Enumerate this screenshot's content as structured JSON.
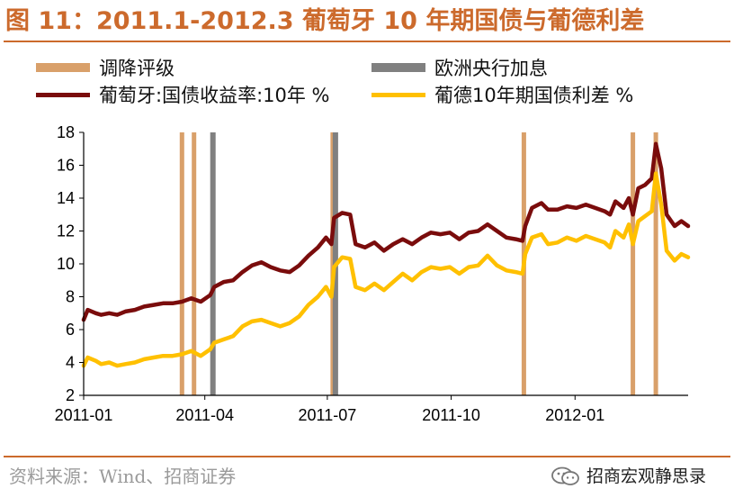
{
  "header": {
    "title": "图 11：2011.1-2012.3 葡萄牙 10 年期国债与葡德利差"
  },
  "legend": {
    "items": [
      {
        "label": "调降评级",
        "kind": "bar",
        "color": "#d9a06a"
      },
      {
        "label": "欧洲央行加息",
        "kind": "bar",
        "color": "#808080"
      },
      {
        "label": "葡萄牙:国债收益率:10年 %",
        "kind": "line",
        "color": "#7a0c0c"
      },
      {
        "label": "葡德10年期国债利差 %",
        "kind": "line",
        "color": "#ffc000"
      }
    ]
  },
  "footer": {
    "source": "资料来源：Wind、招商证券",
    "brand": "招商宏观静思录"
  },
  "chart_data": {
    "type": "line",
    "title": "图 11：2011.1-2012.3 葡萄牙 10 年期国债与葡德利差",
    "xlabel": "",
    "ylabel": "",
    "x_range": [
      "2011-01-01",
      "2012-03-25"
    ],
    "ylim": [
      2,
      18
    ],
    "y_ticks": [
      2,
      4,
      6,
      8,
      10,
      12,
      14,
      16,
      18
    ],
    "x_ticks": [
      {
        "date": "2011-01-01",
        "label": "2011-01"
      },
      {
        "date": "2011-04-01",
        "label": "2011-04"
      },
      {
        "date": "2011-07-01",
        "label": "2011-07"
      },
      {
        "date": "2011-10-01",
        "label": "2011-10"
      },
      {
        "date": "2012-01-01",
        "label": "2012-01"
      }
    ],
    "grid": false,
    "legend_position": "top",
    "events": [
      {
        "series": "调降评级",
        "dates": [
          "2011-03-15",
          "2011-03-24",
          "2011-07-05",
          "2011-11-24",
          "2012-02-13",
          "2012-03-01"
        ]
      },
      {
        "series": "欧洲央行加息",
        "dates": [
          "2011-04-07",
          "2011-07-07"
        ]
      }
    ],
    "series": [
      {
        "name": "葡萄牙:国债收益率:10年 %",
        "color": "#7a0c0c",
        "points": [
          [
            "2011-01-01",
            6.6
          ],
          [
            "2011-01-04",
            7.2
          ],
          [
            "2011-01-10",
            7.0
          ],
          [
            "2011-01-14",
            6.9
          ],
          [
            "2011-01-20",
            7.0
          ],
          [
            "2011-01-26",
            6.9
          ],
          [
            "2011-02-01",
            7.1
          ],
          [
            "2011-02-08",
            7.2
          ],
          [
            "2011-02-15",
            7.4
          ],
          [
            "2011-02-22",
            7.5
          ],
          [
            "2011-03-01",
            7.6
          ],
          [
            "2011-03-08",
            7.6
          ],
          [
            "2011-03-15",
            7.7
          ],
          [
            "2011-03-22",
            7.9
          ],
          [
            "2011-03-29",
            7.7
          ],
          [
            "2011-04-05",
            8.1
          ],
          [
            "2011-04-08",
            8.6
          ],
          [
            "2011-04-15",
            8.9
          ],
          [
            "2011-04-22",
            9.0
          ],
          [
            "2011-04-29",
            9.5
          ],
          [
            "2011-05-06",
            9.9
          ],
          [
            "2011-05-13",
            10.1
          ],
          [
            "2011-05-20",
            9.8
          ],
          [
            "2011-05-27",
            9.6
          ],
          [
            "2011-06-03",
            9.5
          ],
          [
            "2011-06-10",
            9.9
          ],
          [
            "2011-06-17",
            10.5
          ],
          [
            "2011-06-24",
            11.0
          ],
          [
            "2011-06-30",
            11.6
          ],
          [
            "2011-07-04",
            11.2
          ],
          [
            "2011-07-06",
            12.8
          ],
          [
            "2011-07-12",
            13.1
          ],
          [
            "2011-07-18",
            13.0
          ],
          [
            "2011-07-22",
            11.2
          ],
          [
            "2011-07-29",
            11.0
          ],
          [
            "2011-08-05",
            11.3
          ],
          [
            "2011-08-12",
            10.8
          ],
          [
            "2011-08-19",
            11.2
          ],
          [
            "2011-08-26",
            11.5
          ],
          [
            "2011-09-02",
            11.2
          ],
          [
            "2011-09-09",
            11.6
          ],
          [
            "2011-09-16",
            11.9
          ],
          [
            "2011-09-23",
            11.8
          ],
          [
            "2011-09-30",
            11.9
          ],
          [
            "2011-10-07",
            11.5
          ],
          [
            "2011-10-14",
            11.9
          ],
          [
            "2011-10-21",
            12.0
          ],
          [
            "2011-10-28",
            12.4
          ],
          [
            "2011-11-04",
            12.0
          ],
          [
            "2011-11-11",
            11.6
          ],
          [
            "2011-11-18",
            11.5
          ],
          [
            "2011-11-23",
            11.4
          ],
          [
            "2011-11-25",
            12.3
          ],
          [
            "2011-11-30",
            13.4
          ],
          [
            "2011-12-07",
            13.7
          ],
          [
            "2011-12-12",
            13.3
          ],
          [
            "2011-12-19",
            13.3
          ],
          [
            "2011-12-26",
            13.5
          ],
          [
            "2012-01-02",
            13.4
          ],
          [
            "2012-01-09",
            13.6
          ],
          [
            "2012-01-16",
            13.4
          ],
          [
            "2012-01-23",
            13.2
          ],
          [
            "2012-01-27",
            13.0
          ],
          [
            "2012-01-31",
            13.8
          ],
          [
            "2012-02-06",
            13.4
          ],
          [
            "2012-02-10",
            14.0
          ],
          [
            "2012-02-13",
            13.0
          ],
          [
            "2012-02-17",
            14.6
          ],
          [
            "2012-02-22",
            14.8
          ],
          [
            "2012-02-27",
            15.2
          ],
          [
            "2012-03-01",
            17.3
          ],
          [
            "2012-03-05",
            15.8
          ],
          [
            "2012-03-09",
            13.0
          ],
          [
            "2012-03-15",
            12.3
          ],
          [
            "2012-03-20",
            12.6
          ],
          [
            "2012-03-25",
            12.3
          ]
        ]
      },
      {
        "name": "葡德10年期国债利差 %",
        "color": "#ffc000",
        "points": [
          [
            "2011-01-01",
            3.8
          ],
          [
            "2011-01-04",
            4.3
          ],
          [
            "2011-01-10",
            4.1
          ],
          [
            "2011-01-14",
            3.9
          ],
          [
            "2011-01-20",
            4.0
          ],
          [
            "2011-01-26",
            3.8
          ],
          [
            "2011-02-01",
            3.9
          ],
          [
            "2011-02-08",
            4.0
          ],
          [
            "2011-02-15",
            4.2
          ],
          [
            "2011-02-22",
            4.3
          ],
          [
            "2011-03-01",
            4.4
          ],
          [
            "2011-03-08",
            4.4
          ],
          [
            "2011-03-15",
            4.5
          ],
          [
            "2011-03-22",
            4.7
          ],
          [
            "2011-03-29",
            4.4
          ],
          [
            "2011-04-05",
            4.8
          ],
          [
            "2011-04-08",
            5.2
          ],
          [
            "2011-04-15",
            5.4
          ],
          [
            "2011-04-22",
            5.6
          ],
          [
            "2011-04-29",
            6.2
          ],
          [
            "2011-05-06",
            6.5
          ],
          [
            "2011-05-13",
            6.6
          ],
          [
            "2011-05-20",
            6.4
          ],
          [
            "2011-05-27",
            6.2
          ],
          [
            "2011-06-03",
            6.4
          ],
          [
            "2011-06-10",
            6.8
          ],
          [
            "2011-06-17",
            7.5
          ],
          [
            "2011-06-24",
            8.0
          ],
          [
            "2011-06-30",
            8.6
          ],
          [
            "2011-07-04",
            8.0
          ],
          [
            "2011-07-06",
            9.8
          ],
          [
            "2011-07-12",
            10.4
          ],
          [
            "2011-07-18",
            10.3
          ],
          [
            "2011-07-22",
            8.6
          ],
          [
            "2011-07-29",
            8.4
          ],
          [
            "2011-08-05",
            8.8
          ],
          [
            "2011-08-12",
            8.4
          ],
          [
            "2011-08-19",
            8.9
          ],
          [
            "2011-08-26",
            9.4
          ],
          [
            "2011-09-02",
            9.0
          ],
          [
            "2011-09-09",
            9.5
          ],
          [
            "2011-09-16",
            9.8
          ],
          [
            "2011-09-23",
            9.7
          ],
          [
            "2011-09-30",
            9.8
          ],
          [
            "2011-10-07",
            9.4
          ],
          [
            "2011-10-14",
            9.8
          ],
          [
            "2011-10-21",
            9.9
          ],
          [
            "2011-10-28",
            10.5
          ],
          [
            "2011-11-04",
            9.9
          ],
          [
            "2011-11-11",
            9.6
          ],
          [
            "2011-11-18",
            9.5
          ],
          [
            "2011-11-23",
            9.4
          ],
          [
            "2011-11-25",
            10.6
          ],
          [
            "2011-11-30",
            11.6
          ],
          [
            "2011-12-07",
            11.8
          ],
          [
            "2011-12-12",
            11.2
          ],
          [
            "2011-12-19",
            11.3
          ],
          [
            "2011-12-26",
            11.6
          ],
          [
            "2012-01-02",
            11.4
          ],
          [
            "2012-01-09",
            11.7
          ],
          [
            "2012-01-16",
            11.5
          ],
          [
            "2012-01-23",
            11.3
          ],
          [
            "2012-01-27",
            11.0
          ],
          [
            "2012-01-31",
            12.0
          ],
          [
            "2012-02-06",
            11.6
          ],
          [
            "2012-02-10",
            12.4
          ],
          [
            "2012-02-13",
            11.2
          ],
          [
            "2012-02-17",
            12.6
          ],
          [
            "2012-02-22",
            12.9
          ],
          [
            "2012-02-27",
            13.2
          ],
          [
            "2012-03-01",
            15.5
          ],
          [
            "2012-03-05",
            13.6
          ],
          [
            "2012-03-09",
            10.8
          ],
          [
            "2012-03-15",
            10.2
          ],
          [
            "2012-03-20",
            10.6
          ],
          [
            "2012-03-25",
            10.4
          ]
        ]
      }
    ]
  }
}
